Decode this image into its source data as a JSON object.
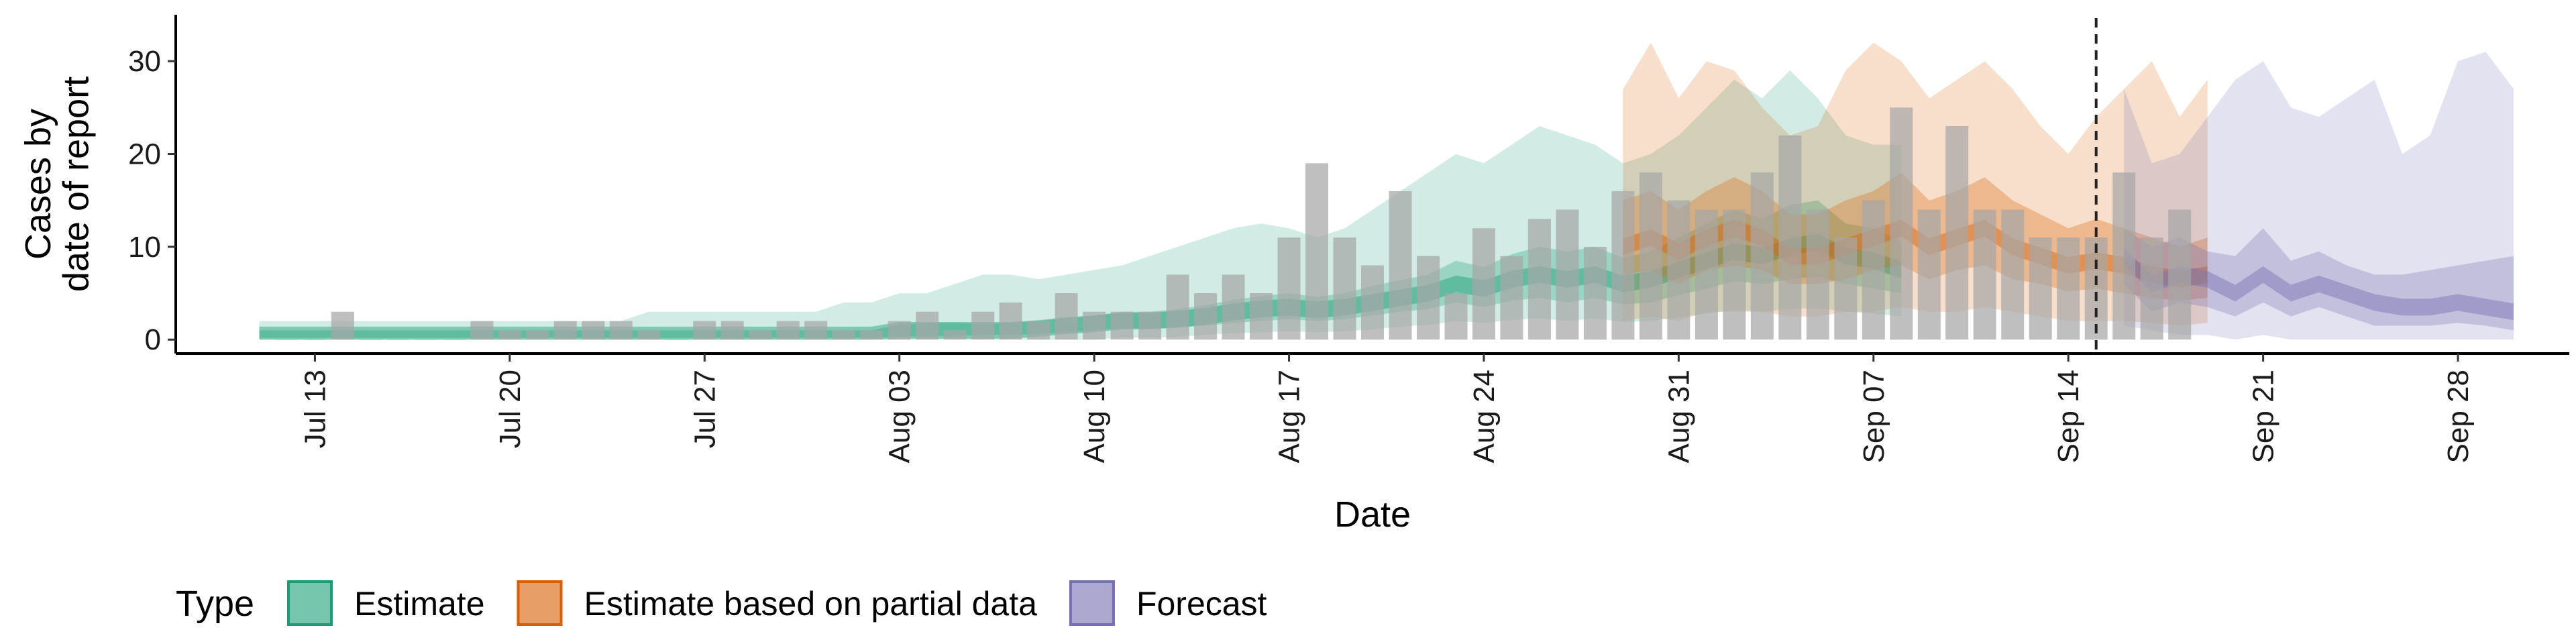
{
  "chart_data": {
    "type": "bar",
    "title": "",
    "xlabel": "Date",
    "ylabel": [
      "Cases by",
      "date of report"
    ],
    "ylim": [
      -1.5,
      35
    ],
    "yticks": [
      0,
      10,
      20,
      30
    ],
    "x_range": [
      "2020-07-08",
      "2020-10-02"
    ],
    "x_ticks": [
      {
        "date": "2020-07-13",
        "label": "Jul 13"
      },
      {
        "date": "2020-07-20",
        "label": "Jul 20"
      },
      {
        "date": "2020-07-27",
        "label": "Jul 27"
      },
      {
        "date": "2020-08-03",
        "label": "Aug 03"
      },
      {
        "date": "2020-08-10",
        "label": "Aug 10"
      },
      {
        "date": "2020-08-17",
        "label": "Aug 17"
      },
      {
        "date": "2020-08-24",
        "label": "Aug 24"
      },
      {
        "date": "2020-08-31",
        "label": "Aug 31"
      },
      {
        "date": "2020-09-07",
        "label": "Sep 07"
      },
      {
        "date": "2020-09-14",
        "label": "Sep 14"
      },
      {
        "date": "2020-09-21",
        "label": "Sep 21"
      },
      {
        "date": "2020-09-28",
        "label": "Sep 28"
      }
    ],
    "forecast_start_line": "2020-09-15",
    "grid": false,
    "legend": {
      "title": "Type",
      "position": "bottom",
      "entries": [
        {
          "label": "Estimate",
          "color": "#1b9e77"
        },
        {
          "label": "Estimate based on partial data",
          "color": "#d95f02"
        },
        {
          "label": "Forecast",
          "color": "#7570b3"
        }
      ]
    },
    "bar_color": "#a6a6a6",
    "reported_cases": {
      "start_date": "2020-07-12",
      "values": [
        0,
        0,
        3,
        0,
        0,
        0,
        0,
        2,
        1,
        1,
        2,
        2,
        2,
        1,
        0,
        2,
        2,
        1,
        2,
        2,
        1,
        1,
        2,
        3,
        1,
        3,
        4,
        2,
        5,
        3,
        3,
        3,
        7,
        5,
        7,
        5,
        11,
        19,
        11,
        8,
        16,
        9,
        5,
        12,
        9,
        13,
        14,
        10,
        16,
        18,
        15,
        14,
        14,
        18,
        22,
        14,
        11,
        15,
        25,
        14,
        23,
        14,
        14,
        11,
        11,
        11,
        18,
        11,
        14
      ]
    },
    "series": [
      {
        "type": "Estimate",
        "color": "#1b9e77",
        "start_date": "2020-07-11",
        "median": [
          0.5,
          0.5,
          0.5,
          0.5,
          0.5,
          0.5,
          0.5,
          0.5,
          0.5,
          0.5,
          0.5,
          0.5,
          0.5,
          0.5,
          0.5,
          0.5,
          0.5,
          0.5,
          0.5,
          0.5,
          0.5,
          0.5,
          0.5,
          1,
          1,
          1,
          1,
          1,
          1.2,
          1.5,
          1.7,
          2,
          2,
          2.2,
          2.5,
          3,
          3.3,
          3.5,
          3.2,
          3.5,
          4,
          4.5,
          5,
          6,
          5.5,
          6.5,
          7,
          6.5,
          7,
          6,
          6.5,
          7.5,
          8.5,
          9.5,
          9,
          10,
          10.5,
          9,
          8.5,
          7.5
        ],
        "inner_lower": [
          0.2,
          0.2,
          0.2,
          0.2,
          0.2,
          0.2,
          0.2,
          0.2,
          0.2,
          0.2,
          0.2,
          0.2,
          0.2,
          0.2,
          0.2,
          0.2,
          0.2,
          0.2,
          0.2,
          0.2,
          0.2,
          0.2,
          0.2,
          0.3,
          0.4,
          0.4,
          0.5,
          0.5,
          0.6,
          0.8,
          1,
          1.2,
          1.2,
          1.3,
          1.5,
          1.8,
          2,
          2.2,
          2,
          2.2,
          2.6,
          3,
          3.3,
          4,
          3.5,
          4.2,
          4.5,
          4,
          4.5,
          3.8,
          4,
          4.8,
          5.5,
          6.3,
          6,
          6.5,
          6.8,
          6,
          5.5,
          5
        ],
        "inner_upper": [
          1,
          1,
          1,
          1,
          1,
          1,
          1,
          1,
          1,
          1,
          1,
          1,
          1,
          1,
          1,
          1,
          1,
          1,
          1,
          1,
          1,
          1,
          1,
          1.6,
          1.8,
          1.8,
          1.7,
          1.8,
          2,
          2.3,
          2.6,
          3,
          3,
          3.3,
          3.7,
          4.3,
          4.7,
          5,
          4.6,
          5,
          5.8,
          6.4,
          7,
          8.5,
          7.8,
          9.2,
          10,
          9.5,
          10,
          8.8,
          9.5,
          11,
          12.5,
          14,
          13,
          14.5,
          15,
          12.5,
          12,
          10.5
        ],
        "outer_lower": [
          0,
          0,
          0,
          0,
          0,
          0,
          0,
          0,
          0,
          0,
          0,
          0,
          0,
          0,
          0,
          0,
          0,
          0,
          0,
          0,
          0,
          0,
          0,
          0,
          0,
          0,
          0,
          0,
          0,
          0,
          0,
          0.2,
          0.2,
          0.3,
          0.5,
          0.7,
          0.8,
          0.9,
          0.8,
          0.9,
          1.1,
          1.4,
          1.6,
          2,
          1.8,
          2.1,
          2.3,
          2,
          2.3,
          1.9,
          2,
          2.4,
          2.8,
          3.2,
          3,
          3.3,
          3.4,
          3,
          2.8,
          2.5
        ],
        "outer_upper": [
          2,
          2,
          2,
          2,
          2,
          2,
          2,
          2,
          2,
          2,
          2,
          2,
          2,
          2,
          3,
          3,
          3,
          3,
          3,
          3,
          3,
          4,
          4,
          5,
          5,
          6,
          7,
          7,
          6.5,
          7,
          7.5,
          8,
          9,
          10,
          11,
          12,
          12.5,
          12,
          11,
          12,
          14,
          16,
          18,
          20,
          19,
          21,
          23,
          22,
          21,
          19,
          20,
          22,
          25,
          28,
          26,
          29,
          26,
          22,
          21,
          21
        ]
      },
      {
        "type": "Estimate based on partial data",
        "color": "#d95f02",
        "start_date": "2020-08-29",
        "median": [
          10,
          11,
          9.5,
          11,
          12,
          11,
          9,
          9,
          10,
          11,
          12,
          10,
          11,
          12,
          10,
          9,
          8,
          8.5,
          8,
          7,
          6.5,
          7
        ],
        "inner_lower": [
          7,
          7.5,
          6,
          7.5,
          8,
          7.5,
          6,
          6,
          6.5,
          7.5,
          8,
          6.5,
          7.5,
          8,
          6.5,
          6,
          5.2,
          5.5,
          5,
          4.5,
          4.2,
          4.5
        ],
        "inner_upper": [
          15,
          16,
          14,
          16,
          17.5,
          16,
          13.5,
          13.5,
          15,
          16,
          18,
          15,
          16,
          17.5,
          15,
          13.5,
          12,
          13,
          12,
          11,
          10,
          11
        ],
        "outer_lower": [
          2,
          2.5,
          2,
          3,
          3,
          3,
          2.5,
          2.5,
          3,
          3,
          3.5,
          3,
          3,
          3.5,
          3,
          2.5,
          2,
          2,
          2,
          1.8,
          1.5,
          1.8
        ],
        "outer_upper": [
          27,
          32,
          26,
          30,
          29,
          25,
          22,
          23,
          29,
          32,
          30,
          26,
          28,
          30,
          27,
          23,
          20,
          24,
          27,
          30,
          24,
          28
        ]
      },
      {
        "type": "Forecast",
        "color": "#7570b3",
        "start_date": "2020-09-16",
        "median": [
          9,
          6,
          7,
          6.5,
          5,
          7,
          5,
          6,
          5,
          4,
          3.5,
          3.5,
          4,
          3.5,
          3
        ],
        "inner_lower": [
          6,
          3,
          4,
          3.5,
          2.5,
          4,
          2.5,
          3.5,
          2.5,
          1.5,
          1.5,
          1.5,
          1.8,
          1.5,
          1
        ],
        "inner_upper": [
          12,
          10,
          11,
          9.5,
          9,
          12,
          8.5,
          9.5,
          8,
          7,
          7,
          7.5,
          8,
          8.5,
          9
        ],
        "outer_lower": [
          1.5,
          1,
          0.5,
          0.5,
          0,
          0.5,
          0,
          0,
          0,
          0,
          0,
          0,
          0,
          0,
          0
        ],
        "outer_upper": [
          27,
          19,
          20,
          24,
          28,
          30,
          25,
          24,
          26,
          28,
          20,
          22,
          30,
          31,
          27
        ]
      }
    ]
  }
}
